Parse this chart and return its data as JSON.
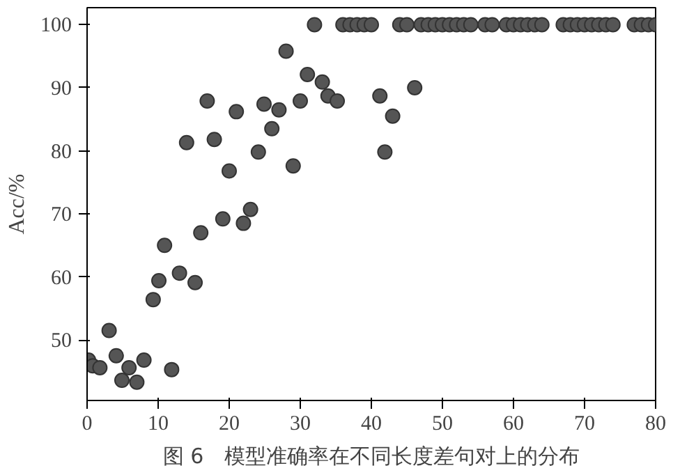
{
  "chart_data": {
    "type": "scatter",
    "title": "图 6　模型准确率在不同长度差句对上的分布",
    "ylabel": "Acc/%",
    "x": [
      0.2,
      0.8,
      1.8,
      3.1,
      4.1,
      4.9,
      5.9,
      7.0,
      8.0,
      9.3,
      10.1,
      10.9,
      11.9,
      13.0,
      14.0,
      15.2,
      16.0,
      16.9,
      17.9,
      19.1,
      20.0,
      21.0,
      22.0,
      23.0,
      24.1,
      24.9,
      26.0,
      27.0,
      28.0,
      29.0,
      30.0,
      31.0,
      32,
      33.1,
      33.9,
      35.2,
      36,
      37,
      38,
      39,
      40,
      41.2,
      41.9,
      43.0,
      44,
      45,
      46.1,
      47,
      48,
      49,
      50,
      51,
      52,
      53,
      54,
      56,
      57,
      59,
      60,
      61,
      62,
      63,
      64,
      67,
      68,
      69,
      70,
      71,
      72,
      73,
      74,
      77,
      78,
      79,
      80
    ],
    "values": [
      46.8,
      45.9,
      45.6,
      51.5,
      47.5,
      43.6,
      45.6,
      43.3,
      46.8,
      56.4,
      59.4,
      65.0,
      45.3,
      60.6,
      81.3,
      59.1,
      67.0,
      87.9,
      81.8,
      69.2,
      76.8,
      86.2,
      68.5,
      70.7,
      79.8,
      87.4,
      83.5,
      86.5,
      95.8,
      77.6,
      87.9,
      92.1,
      100,
      90.9,
      88.7,
      87.9,
      100,
      100,
      100,
      100,
      100,
      88.7,
      79.8,
      85.5,
      100,
      100,
      90.0,
      100,
      100,
      100,
      100,
      100,
      100,
      100,
      100,
      100,
      100,
      100,
      100,
      100,
      100,
      100,
      100,
      100,
      100,
      100,
      100,
      100,
      100,
      100,
      100,
      100,
      100,
      100,
      100
    ],
    "color": "#555555",
    "marker": "circle",
    "xlim": [
      0,
      80
    ],
    "ylim": [
      40.4,
      102.7
    ],
    "xticks": [
      0,
      10,
      20,
      30,
      40,
      50,
      60,
      70,
      80
    ],
    "yticks": [
      50,
      60,
      70,
      80,
      90,
      100
    ],
    "grid": false
  }
}
